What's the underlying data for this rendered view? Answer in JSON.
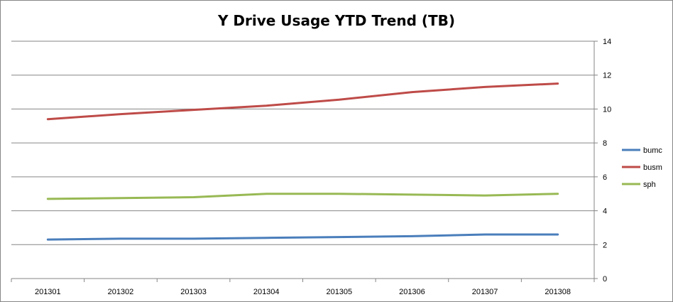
{
  "chart_data": {
    "type": "line",
    "title": "Y Drive Usage YTD Trend (TB)",
    "xlabel": "",
    "ylabel": "",
    "categories": [
      "201301",
      "201302",
      "201303",
      "201304",
      "201305",
      "201306",
      "201307",
      "201308"
    ],
    "ylim": [
      0,
      14
    ],
    "yticks": [
      0,
      2,
      4,
      6,
      8,
      10,
      12,
      14
    ],
    "y_axis_side": "right",
    "grid": true,
    "legend_position": "right",
    "series": [
      {
        "name": "bumc",
        "color": "#4a7ebb",
        "values": [
          2.3,
          2.35,
          2.35,
          2.4,
          2.45,
          2.5,
          2.6,
          2.6
        ]
      },
      {
        "name": "busm",
        "color": "#be4b48",
        "values": [
          9.4,
          9.7,
          9.95,
          10.2,
          10.55,
          11.0,
          11.3,
          11.5
        ]
      },
      {
        "name": "sph",
        "color": "#98b954",
        "values": [
          4.7,
          4.75,
          4.8,
          5.0,
          5.0,
          4.95,
          4.9,
          5.0
        ]
      }
    ]
  }
}
